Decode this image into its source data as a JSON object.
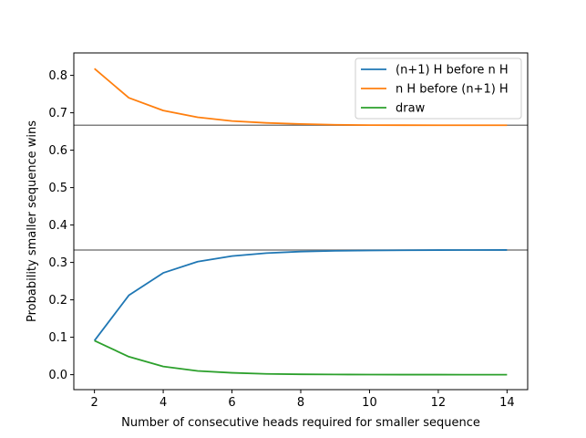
{
  "chart_data": {
    "type": "line",
    "title": "",
    "xlabel": "Number of consecutive heads required for smaller sequence",
    "ylabel": "Probability smaller sequence wins",
    "xlim": [
      1.4,
      14.6
    ],
    "ylim": [
      -0.04,
      0.86
    ],
    "x_ticks": [
      2,
      4,
      6,
      8,
      10,
      12,
      14
    ],
    "y_ticks": [
      0.0,
      0.1,
      0.2,
      0.3,
      0.4,
      0.5,
      0.6,
      0.7,
      0.8
    ],
    "grid": false,
    "legend_placement": "top-right",
    "x": [
      2,
      3,
      4,
      5,
      6,
      7,
      8,
      9,
      10,
      11,
      12,
      13,
      14
    ],
    "series": [
      {
        "name": "(n+1) H before n H",
        "color": "#1f77b4",
        "values": [
          0.091,
          0.212,
          0.272,
          0.302,
          0.317,
          0.325,
          0.329,
          0.331,
          0.332,
          0.3325,
          0.333,
          0.3332,
          0.3333
        ]
      },
      {
        "name": "n H before (n+1) H",
        "color": "#ff7f0e",
        "values": [
          0.818,
          0.74,
          0.706,
          0.688,
          0.678,
          0.673,
          0.67,
          0.668,
          0.667,
          0.6668,
          0.6667,
          0.6667,
          0.6667
        ]
      },
      {
        "name": "draw",
        "color": "#2ca02c",
        "values": [
          0.091,
          0.048,
          0.022,
          0.01,
          0.005,
          0.002,
          0.001,
          0.0005,
          0.0002,
          0.0001,
          0.0001,
          0.0,
          0.0
        ]
      }
    ],
    "reference_lines": [
      {
        "y": 0.6667,
        "color": "#808080"
      },
      {
        "y": 0.3333,
        "color": "#808080"
      }
    ]
  }
}
